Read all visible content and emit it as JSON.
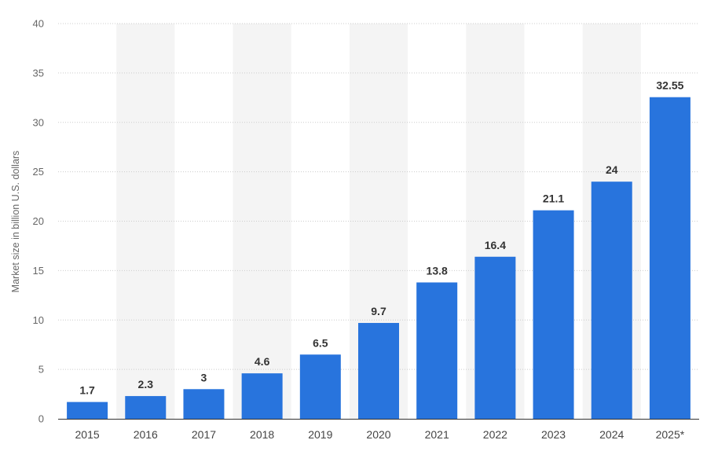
{
  "chart_data": {
    "type": "bar",
    "categories": [
      "2015",
      "2016",
      "2017",
      "2018",
      "2019",
      "2020",
      "2021",
      "2022",
      "2023",
      "2024",
      "2025*"
    ],
    "values": [
      1.7,
      2.3,
      3,
      4.6,
      6.5,
      9.7,
      13.8,
      16.4,
      21.1,
      24,
      32.55
    ],
    "value_labels": [
      "1.7",
      "2.3",
      "3",
      "4.6",
      "6.5",
      "9.7",
      "13.8",
      "16.4",
      "21.1",
      "24",
      "32.55"
    ],
    "title": "",
    "xlabel": "",
    "ylabel": "Market size in billion U.S. dollars",
    "ylim": [
      0,
      40
    ],
    "yticks": [
      0,
      5,
      10,
      15,
      20,
      25,
      30,
      35,
      40
    ],
    "grid": true,
    "alternating_column_shading": true,
    "legend": "none",
    "colors": {
      "bar": "#2874dd",
      "shade": "#f4f4f4",
      "grid": "#cccccc",
      "axis": "#333333"
    }
  }
}
